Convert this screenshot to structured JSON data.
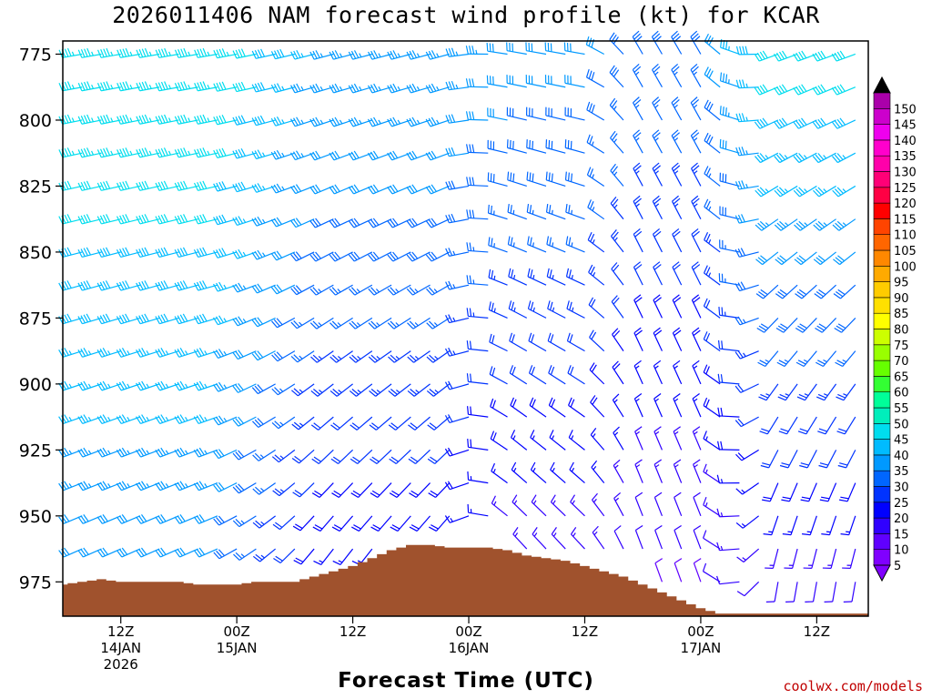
{
  "title": "2026011406 NAM forecast wind profile (kt) for KCAR",
  "xaxis_title": "Forecast Time (UTC)",
  "credit": "coolwx.com/models",
  "chart_data": {
    "type": "wind_barb_time_height",
    "title": "2026011406 NAM forecast wind profile (kt) for KCAR",
    "xlabel": "Forecast Time (UTC)",
    "ylabel": "",
    "y_ticks": [
      775,
      800,
      825,
      850,
      875,
      900,
      925,
      950,
      975
    ],
    "y_range_hpa": [
      770,
      988
    ],
    "x_ticks": [
      {
        "hour": 6,
        "lines": [
          "12Z",
          "14JAN",
          "2026"
        ]
      },
      {
        "hour": 24,
        "lines": [
          "00Z",
          "15JAN"
        ]
      },
      {
        "hour": 42,
        "lines": [
          "12Z"
        ]
      },
      {
        "hour": 60,
        "lines": [
          "00Z",
          "16JAN"
        ]
      },
      {
        "hour": 78,
        "lines": [
          "12Z"
        ]
      },
      {
        "hour": 96,
        "lines": [
          "00Z",
          "17JAN"
        ]
      },
      {
        "hour": 114,
        "lines": [
          "12Z"
        ]
      }
    ],
    "x_range_hours": [
      -3,
      122
    ],
    "levels_hpa": [
      775,
      787.5,
      800,
      812.5,
      825,
      837.5,
      850,
      862.5,
      875,
      887.5,
      900,
      912.5,
      925,
      937.5,
      950,
      962.5,
      975
    ],
    "surface_pressure_hpa": {
      "hours": [
        -3,
        0,
        3,
        6,
        9,
        12,
        15,
        18,
        21,
        24,
        27,
        30,
        33,
        36,
        39,
        42,
        45,
        48,
        51,
        54,
        57,
        60,
        63,
        66,
        69,
        72,
        75,
        78,
        81,
        84,
        87,
        90,
        93,
        96,
        99,
        102,
        105,
        108,
        111,
        114,
        117,
        122
      ],
      "values": [
        976,
        975,
        974,
        975,
        975,
        975,
        975,
        976,
        976,
        976,
        975,
        975,
        975,
        973,
        971,
        969,
        966,
        963,
        961,
        961,
        962,
        962,
        962,
        963,
        965,
        966,
        967,
        969,
        971,
        973,
        976,
        979,
        982,
        985,
        987,
        987,
        987,
        987,
        987,
        987,
        987,
        987
      ]
    },
    "colorbar": {
      "labels": [
        5,
        10,
        15,
        20,
        25,
        30,
        35,
        40,
        45,
        50,
        55,
        60,
        65,
        70,
        75,
        80,
        85,
        90,
        95,
        100,
        105,
        110,
        115,
        120,
        125,
        130,
        135,
        140,
        145,
        150
      ],
      "colors": [
        "#8000ff",
        "#6000ff",
        "#3000ff",
        "#0000ff",
        "#0033ff",
        "#0066ff",
        "#0099ff",
        "#00bbff",
        "#00ddee",
        "#00eebb",
        "#00ff99",
        "#33ff33",
        "#66ff00",
        "#99ff00",
        "#ccff00",
        "#ffff00",
        "#ffe000",
        "#ffcc00",
        "#ffaa00",
        "#ff8800",
        "#ff6600",
        "#ff4400",
        "#ff0000",
        "#ff0044",
        "#ff0077",
        "#ff00aa",
        "#ff00cc",
        "#ee00ee",
        "#cc00cc",
        "#aa00aa"
      ]
    },
    "terrain_color": "#a0522d",
    "wind_field": {
      "hours_start": -3,
      "hours_step": 3,
      "hours_end": 120,
      "note_dir": "direction in degrees meteorological (from)",
      "regimes": [
        {
          "until_hour": 21,
          "upper_dir": 260,
          "lower_dir": 245,
          "upper_speed": 45,
          "lower_speed": 30
        },
        {
          "until_hour": 57,
          "upper_dir": 255,
          "lower_dir": 215,
          "upper_speed": 35,
          "lower_speed": 15
        },
        {
          "until_hour": 78,
          "upper_dir": 280,
          "lower_dir": 320,
          "upper_speed": 32,
          "lower_speed": 12
        },
        {
          "until_hour": 96,
          "upper_dir": 330,
          "lower_dir": 340,
          "upper_speed": 28,
          "lower_speed": 10
        },
        {
          "until_hour": 122,
          "upper_dir": 250,
          "lower_dir": 190,
          "upper_speed": 42,
          "lower_speed": 12
        }
      ]
    }
  }
}
